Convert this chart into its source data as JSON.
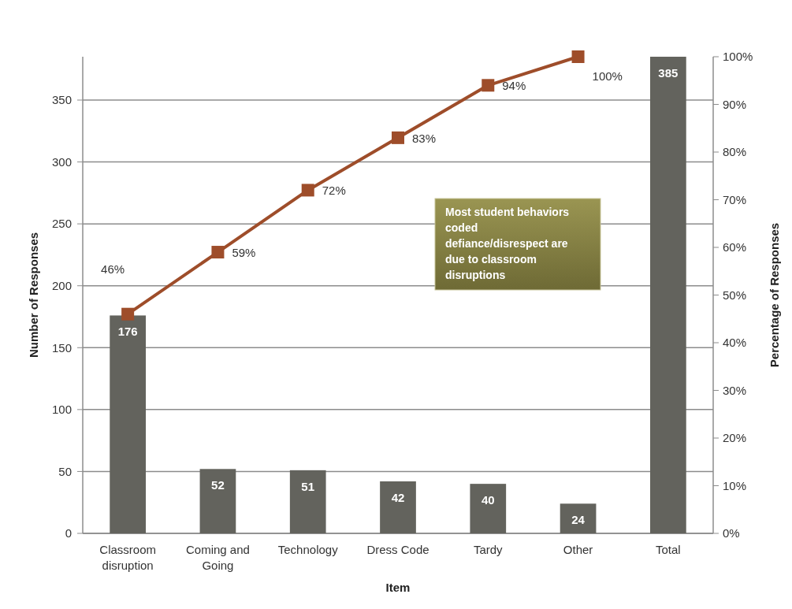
{
  "chart_data": {
    "type": "bar",
    "xlabel": "Item",
    "ylabel": "Number of Responses",
    "y2label": "Percentage of Responses",
    "categories": [
      "Classroom disruption",
      "Coming and Going",
      "Technology",
      "Dress Code",
      "Tardy",
      "Other",
      "Total"
    ],
    "series": [
      {
        "color": "#63635d",
        "values": [
          176,
          52,
          51,
          42,
          40,
          24,
          385
        ]
      },
      {
        "type": "line",
        "axis": "y2",
        "color": "#9e4d2a",
        "values": [
          46,
          59,
          72,
          83,
          94,
          100,
          null
        ],
        "value_labels": [
          "46%",
          "59%",
          "72%",
          "83%",
          "94%",
          "100%",
          null
        ]
      }
    ],
    "data_labels": true,
    "marker": "square",
    "grid": "y",
    "ylim": [
      0,
      385
    ],
    "yticks": [
      0,
      50,
      100,
      150,
      200,
      250,
      300,
      350
    ],
    "y2lim": [
      0,
      100
    ],
    "y2ticks": [
      {
        "value": 0,
        "label": "0%"
      },
      {
        "value": 10,
        "label": "10%"
      },
      {
        "value": 20,
        "label": "20%"
      },
      {
        "value": 30,
        "label": "30%"
      },
      {
        "value": 40,
        "label": "40%"
      },
      {
        "value": 50,
        "label": "50%"
      },
      {
        "value": 60,
        "label": "60%"
      },
      {
        "value": 70,
        "label": "70%"
      },
      {
        "value": 80,
        "label": "80%"
      },
      {
        "value": 90,
        "label": "90%"
      },
      {
        "value": 100,
        "label": "100%"
      }
    ],
    "annotations": [
      "Most student behaviors coded defiance/disrespect are due to classroom disruptions"
    ]
  }
}
